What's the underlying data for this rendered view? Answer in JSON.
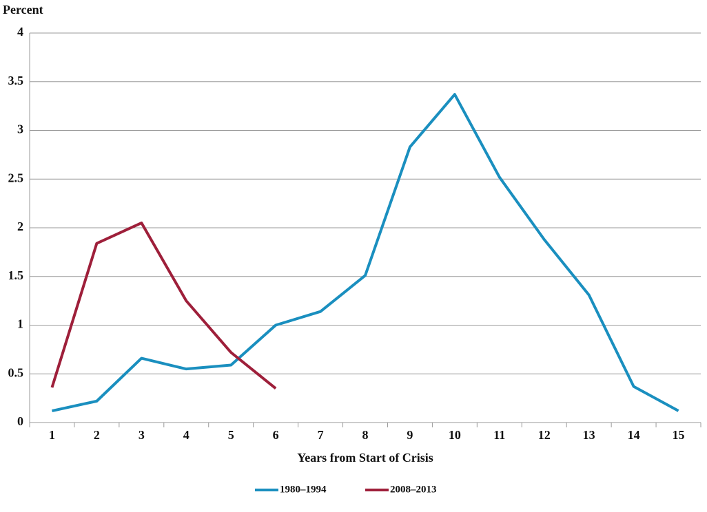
{
  "chart_data": {
    "type": "line",
    "y_label": "Percent",
    "x_label": "Years from Start of Crisis",
    "categories": [
      "1",
      "2",
      "3",
      "4",
      "5",
      "6",
      "7",
      "8",
      "9",
      "10",
      "11",
      "12",
      "13",
      "14",
      "15"
    ],
    "series": [
      {
        "name": "1980–1994",
        "color": "#1a8fbf",
        "values": [
          0.12,
          0.22,
          0.66,
          0.55,
          0.59,
          1.0,
          1.14,
          1.51,
          2.83,
          3.37,
          2.52,
          1.88,
          1.31,
          0.37,
          0.12
        ]
      },
      {
        "name": "2008–2013",
        "color": "#9e1f3a",
        "values": [
          0.36,
          1.84,
          2.05,
          1.25,
          0.72,
          0.35,
          null,
          null,
          null,
          null,
          null,
          null,
          null,
          null,
          null
        ]
      }
    ],
    "ylim": [
      0,
      4
    ],
    "yticks": [
      0,
      0.5,
      1,
      1.5,
      2,
      2.5,
      3,
      3.5,
      4
    ],
    "grid": true,
    "legend": "bottom"
  }
}
